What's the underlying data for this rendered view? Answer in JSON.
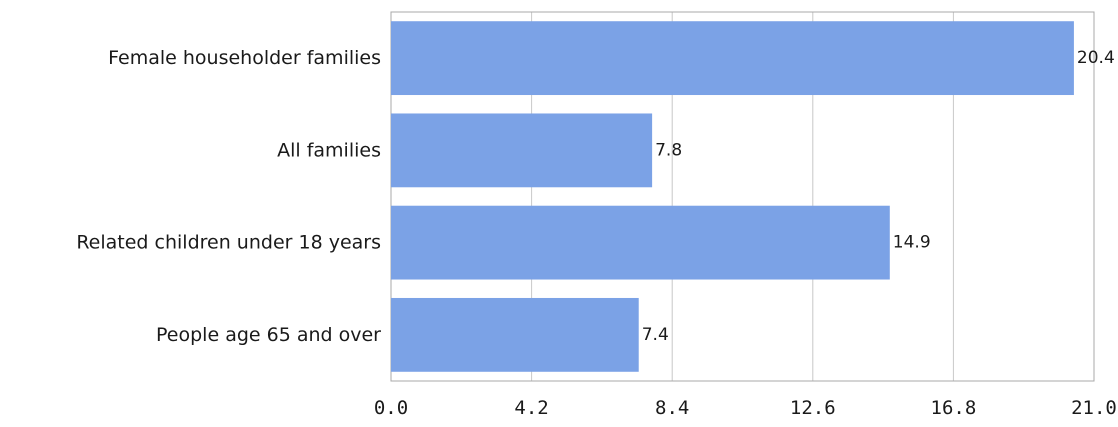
{
  "chart_data": {
    "type": "bar",
    "orientation": "horizontal",
    "title": "",
    "xlabel": "",
    "ylabel": "",
    "categories": [
      "Female householder families",
      "All families",
      "Related children under 18 years",
      "People age 65 and over"
    ],
    "values": [
      20.4,
      7.8,
      14.9,
      7.4
    ],
    "data_labels": [
      "20.4",
      "7.8",
      "14.9",
      "7.4"
    ],
    "xlim": [
      0,
      21
    ],
    "xticks": [
      0,
      4.2,
      8.4,
      12.6,
      16.8,
      21
    ],
    "xtick_labels": [
      "0.0",
      "4.2",
      "8.4",
      "12.6",
      "16.8",
      "21.0"
    ],
    "grid": "vertical",
    "legend": "none",
    "bar_color": "#7ba2e6"
  }
}
